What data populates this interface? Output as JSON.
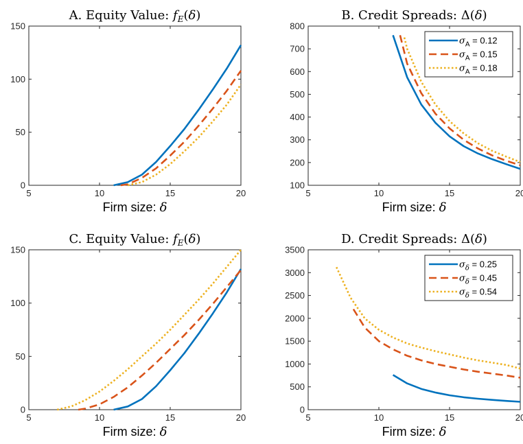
{
  "chart_data": [
    {
      "id": "A",
      "type": "line",
      "title": "A. Equity Value: f_E(δ)",
      "xlabel": "Firm size: δ",
      "ylabel": "",
      "xlim": [
        5,
        20
      ],
      "ylim": [
        0,
        150
      ],
      "xticks": [
        5,
        10,
        15,
        20
      ],
      "yticks": [
        0,
        50,
        100,
        150
      ],
      "series": [
        {
          "color": "#0072BD",
          "dash": "solid",
          "x": [
            11,
            12,
            13,
            14,
            15,
            16,
            17,
            18,
            19,
            20
          ],
          "y": [
            0,
            3,
            10,
            22,
            37,
            53,
            71,
            90,
            110,
            132
          ]
        },
        {
          "color": "#D95319",
          "dash": "dashed",
          "x": [
            11.5,
            12,
            13,
            14,
            15,
            16,
            17,
            18,
            19,
            20
          ],
          "y": [
            0,
            1,
            7,
            16,
            28,
            41,
            56,
            72,
            89,
            108
          ]
        },
        {
          "color": "#EDB120",
          "dash": "dotted",
          "x": [
            12,
            13,
            14,
            15,
            16,
            17,
            18,
            19,
            20
          ],
          "y": [
            0,
            3,
            10,
            20,
            32,
            45,
            60,
            76,
            95
          ]
        }
      ]
    },
    {
      "id": "B",
      "type": "line",
      "title": "B. Credit Spreads: Δ(δ)",
      "xlabel": "Firm size: δ",
      "ylabel": "",
      "xlim": [
        5,
        20
      ],
      "ylim": [
        100,
        800
      ],
      "xticks": [
        5,
        10,
        15,
        20
      ],
      "yticks": [
        100,
        200,
        300,
        400,
        500,
        600,
        700,
        800
      ],
      "legend": {
        "position": "top-right",
        "symbol": "σ",
        "subscript": "A"
      },
      "series": [
        {
          "name": "= 0.12",
          "color": "#0072BD",
          "dash": "solid",
          "x": [
            11,
            12,
            13,
            14,
            15,
            16,
            17,
            18,
            19,
            20
          ],
          "y": [
            760,
            575,
            455,
            375,
            315,
            272,
            240,
            215,
            193,
            172
          ]
        },
        {
          "name": "= 0.15",
          "color": "#D95319",
          "dash": "dashed",
          "x": [
            11.5,
            12,
            13,
            14,
            15,
            16,
            17,
            18,
            19,
            20
          ],
          "y": [
            760,
            635,
            505,
            415,
            350,
            300,
            262,
            232,
            208,
            188
          ]
        },
        {
          "name": "= 0.18",
          "color": "#EDB120",
          "dash": "dotted",
          "x": [
            11.8,
            12,
            13,
            14,
            15,
            16,
            17,
            18,
            19,
            20
          ],
          "y": [
            750,
            700,
            555,
            455,
            382,
            328,
            285,
            252,
            226,
            202
          ]
        }
      ]
    },
    {
      "id": "C",
      "type": "line",
      "title": "C. Equity Value: f_E(δ)",
      "xlabel": "Firm size: δ",
      "ylabel": "",
      "xlim": [
        5,
        20
      ],
      "ylim": [
        0,
        150
      ],
      "xticks": [
        5,
        10,
        15,
        20
      ],
      "yticks": [
        0,
        50,
        100,
        150
      ],
      "series": [
        {
          "color": "#0072BD",
          "dash": "solid",
          "x": [
            11,
            12,
            13,
            14,
            15,
            16,
            17,
            18,
            19,
            20
          ],
          "y": [
            0,
            3,
            10,
            22,
            37,
            53,
            71,
            90,
            110,
            132
          ]
        },
        {
          "color": "#D95319",
          "dash": "dashed",
          "x": [
            8.5,
            9,
            10,
            11,
            12,
            13,
            14,
            15,
            16,
            17,
            18,
            19,
            20
          ],
          "y": [
            0,
            1,
            5,
            12,
            21,
            32,
            44,
            57,
            70,
            84,
            99,
            115,
            131
          ]
        },
        {
          "color": "#EDB120",
          "dash": "dotted",
          "x": [
            7,
            8,
            9,
            10,
            11,
            12,
            13,
            14,
            15,
            16,
            17,
            18,
            19,
            20
          ],
          "y": [
            0,
            3,
            9,
            17,
            27,
            38,
            50,
            62,
            75,
            89,
            103,
            118,
            134,
            150
          ]
        }
      ]
    },
    {
      "id": "D",
      "type": "line",
      "title": "D. Credit Spreads: Δ(δ)",
      "xlabel": "Firm size: δ",
      "ylabel": "",
      "xlim": [
        5,
        20
      ],
      "ylim": [
        0,
        3500
      ],
      "xticks": [
        5,
        10,
        15,
        20
      ],
      "yticks": [
        0,
        500,
        1000,
        1500,
        2000,
        2500,
        3000,
        3500
      ],
      "legend": {
        "position": "top-right",
        "symbol": "σ",
        "subscript": "δ"
      },
      "series": [
        {
          "name": "= 0.25",
          "color": "#0072BD",
          "dash": "solid",
          "x": [
            11,
            12,
            13,
            14,
            15,
            16,
            17,
            18,
            19,
            20
          ],
          "y": [
            760,
            575,
            455,
            375,
            315,
            272,
            240,
            215,
            193,
            172
          ]
        },
        {
          "name": "= 0.45",
          "color": "#D95319",
          "dash": "dashed",
          "x": [
            8.2,
            9,
            10,
            11,
            12,
            13,
            14,
            15,
            16,
            17,
            18,
            19,
            20
          ],
          "y": [
            2200,
            1800,
            1500,
            1320,
            1180,
            1080,
            1000,
            940,
            880,
            830,
            790,
            750,
            700
          ]
        },
        {
          "name": "= 0.54",
          "color": "#EDB120",
          "dash": "dotted",
          "x": [
            7,
            8,
            9,
            10,
            11,
            12,
            13,
            14,
            15,
            16,
            17,
            18,
            19,
            20
          ],
          "y": [
            3120,
            2450,
            2000,
            1750,
            1580,
            1450,
            1360,
            1280,
            1210,
            1140,
            1080,
            1030,
            980,
            900
          ]
        }
      ]
    }
  ]
}
